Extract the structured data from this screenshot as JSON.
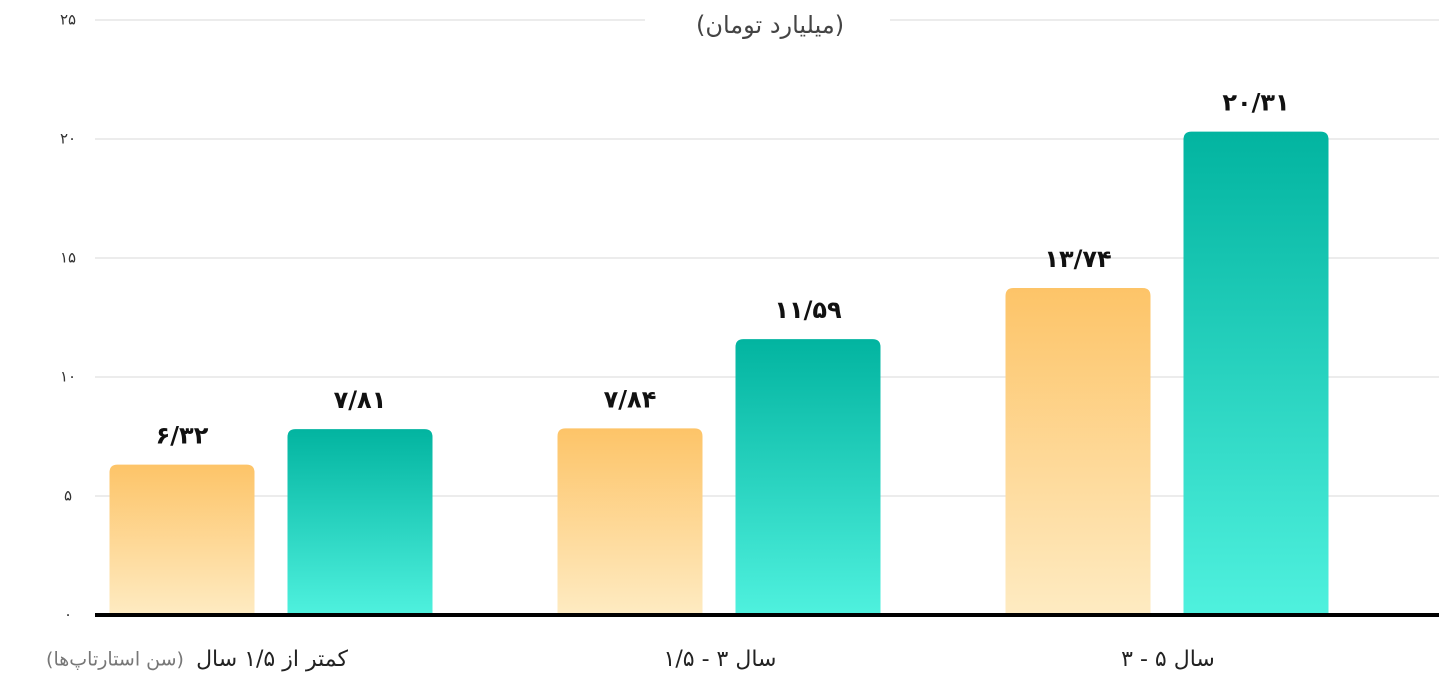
{
  "chart_data": {
    "type": "bar",
    "title": "(میلیارد تومان)",
    "x_label": "(سن استارتاپ‌ها)",
    "categories": [
      "کمتر از ۱/۵ سال",
      "۱/۵ - ۳ سال",
      "۳ - ۵ سال"
    ],
    "series": [
      {
        "color": "#fdc468",
        "color_end": "#feebc2",
        "values": [
          6.32,
          7.84,
          13.74
        ],
        "value_labels": [
          "۶/۳۲",
          "۷/۸۴",
          "۱۳/۷۴"
        ]
      },
      {
        "color": "#02b4a0",
        "color_end": "#4ff1de",
        "values": [
          7.81,
          11.59,
          20.31
        ],
        "value_labels": [
          "۷/۸۱",
          "۱۱/۵۹",
          "۲۰/۳۱"
        ]
      }
    ],
    "ylim": [
      0,
      25
    ],
    "yticks": [
      {
        "value": 0,
        "label": "۰"
      },
      {
        "value": 5,
        "label": "۵"
      },
      {
        "value": 10,
        "label": "۱۰"
      },
      {
        "value": 15,
        "label": "۱۵"
      },
      {
        "value": 20,
        "label": "۲۰"
      },
      {
        "value": 25,
        "label": "۲۵"
      }
    ],
    "grid": true
  }
}
